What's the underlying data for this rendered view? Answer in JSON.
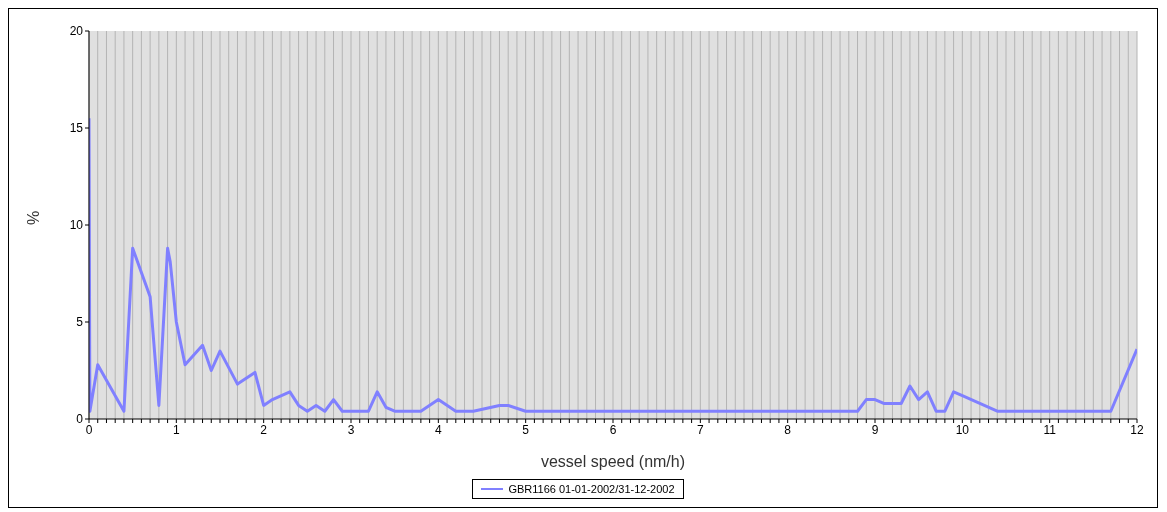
{
  "chart_data": {
    "type": "line",
    "xlabel": "vessel speed (nm/h)",
    "ylabel": "%",
    "legend": "bottom",
    "grid": "x",
    "marker": "none",
    "line_style": "solid",
    "xlim": [
      0,
      12
    ],
    "ylim": [
      0,
      20
    ],
    "yticks": [
      0,
      5,
      10,
      15,
      20
    ],
    "xticks": [
      0,
      {
        "value": 0.1,
        "label": null
      },
      {
        "value": 0.2,
        "label": null
      },
      {
        "value": 0.3,
        "label": null
      },
      {
        "value": 0.4,
        "label": null
      },
      {
        "value": 0.5,
        "label": null
      },
      {
        "value": 0.6,
        "label": null
      },
      {
        "value": 0.7,
        "label": null
      },
      {
        "value": 0.8,
        "label": null
      },
      {
        "value": 0.9,
        "label": null
      },
      1,
      {
        "value": 1.1,
        "label": null
      },
      {
        "value": 1.2,
        "label": null
      },
      {
        "value": 1.3,
        "label": null
      },
      {
        "value": 1.4,
        "label": null
      },
      {
        "value": 1.5,
        "label": null
      },
      {
        "value": 1.6,
        "label": null
      },
      {
        "value": 1.7,
        "label": null
      },
      {
        "value": 1.8,
        "label": null
      },
      {
        "value": 1.9,
        "label": null
      },
      2,
      {
        "value": 2.1,
        "label": null
      },
      {
        "value": 2.2,
        "label": null
      },
      {
        "value": 2.3,
        "label": null
      },
      {
        "value": 2.4,
        "label": null
      },
      {
        "value": 2.5,
        "label": null
      },
      {
        "value": 2.6,
        "label": null
      },
      {
        "value": 2.7,
        "label": null
      },
      {
        "value": 2.8,
        "label": null
      },
      {
        "value": 2.9,
        "label": null
      },
      3,
      {
        "value": 3.1,
        "label": null
      },
      {
        "value": 3.2,
        "label": null
      },
      {
        "value": 3.3,
        "label": null
      },
      {
        "value": 3.4,
        "label": null
      },
      {
        "value": 3.5,
        "label": null
      },
      {
        "value": 3.6,
        "label": null
      },
      {
        "value": 3.7,
        "label": null
      },
      {
        "value": 3.8,
        "label": null
      },
      {
        "value": 3.9,
        "label": null
      },
      4,
      {
        "value": 4.1,
        "label": null
      },
      {
        "value": 4.2,
        "label": null
      },
      {
        "value": 4.3,
        "label": null
      },
      {
        "value": 4.4,
        "label": null
      },
      {
        "value": 4.5,
        "label": null
      },
      {
        "value": 4.6,
        "label": null
      },
      {
        "value": 4.7,
        "label": null
      },
      {
        "value": 4.8,
        "label": null
      },
      {
        "value": 4.9,
        "label": null
      },
      5,
      {
        "value": 5.1,
        "label": null
      },
      {
        "value": 5.2,
        "label": null
      },
      {
        "value": 5.3,
        "label": null
      },
      {
        "value": 5.4,
        "label": null
      },
      {
        "value": 5.5,
        "label": null
      },
      {
        "value": 5.6,
        "label": null
      },
      {
        "value": 5.7,
        "label": null
      },
      {
        "value": 5.8,
        "label": null
      },
      {
        "value": 5.9,
        "label": null
      },
      6,
      {
        "value": 6.1,
        "label": null
      },
      {
        "value": 6.2,
        "label": null
      },
      {
        "value": 6.3,
        "label": null
      },
      {
        "value": 6.4,
        "label": null
      },
      {
        "value": 6.5,
        "label": null
      },
      {
        "value": 6.6,
        "label": null
      },
      {
        "value": 6.7,
        "label": null
      },
      {
        "value": 6.8,
        "label": null
      },
      {
        "value": 6.9,
        "label": null
      },
      7,
      {
        "value": 7.1,
        "label": null
      },
      {
        "value": 7.2,
        "label": null
      },
      {
        "value": 7.3,
        "label": null
      },
      {
        "value": 7.4,
        "label": null
      },
      {
        "value": 7.5,
        "label": null
      },
      {
        "value": 7.6,
        "label": null
      },
      {
        "value": 7.7,
        "label": null
      },
      {
        "value": 7.8,
        "label": null
      },
      {
        "value": 7.9,
        "label": null
      },
      8,
      {
        "value": 8.1,
        "label": null
      },
      {
        "value": 8.2,
        "label": null
      },
      {
        "value": 8.3,
        "label": null
      },
      {
        "value": 8.4,
        "label": null
      },
      {
        "value": 8.5,
        "label": null
      },
      {
        "value": 8.6,
        "label": null
      },
      {
        "value": 8.7,
        "label": null
      },
      {
        "value": 8.8,
        "label": null
      },
      {
        "value": 8.9,
        "label": null
      },
      9,
      {
        "value": 9.1,
        "label": null
      },
      {
        "value": 9.2,
        "label": null
      },
      {
        "value": 9.3,
        "label": null
      },
      {
        "value": 9.4,
        "label": null
      },
      {
        "value": 9.5,
        "label": null
      },
      {
        "value": 9.6,
        "label": null
      },
      {
        "value": 9.7,
        "label": null
      },
      {
        "value": 9.8,
        "label": null
      },
      {
        "value": 9.9,
        "label": null
      },
      10,
      {
        "value": 10.1,
        "label": null
      },
      {
        "value": 10.2,
        "label": null
      },
      {
        "value": 10.3,
        "label": null
      },
      {
        "value": 10.4,
        "label": null
      },
      {
        "value": 10.5,
        "label": null
      },
      {
        "value": 10.6,
        "label": null
      },
      {
        "value": 10.7,
        "label": null
      },
      {
        "value": 10.8,
        "label": null
      },
      {
        "value": 10.9,
        "label": null
      },
      11,
      {
        "value": 11.1,
        "label": null
      },
      {
        "value": 11.2,
        "label": null
      },
      {
        "value": 11.3,
        "label": null
      },
      {
        "value": 11.4,
        "label": null
      },
      {
        "value": 11.5,
        "label": null
      },
      {
        "value": 11.6,
        "label": null
      },
      {
        "value": 11.7,
        "label": null
      },
      {
        "value": 11.8,
        "label": null
      },
      {
        "value": 11.9,
        "label": null
      },
      12
    ],
    "series": [
      {
        "name": "GBR1166 01-01-2002/31-12-2002",
        "color": "#8080ff",
        "x": [
          0,
          0.01,
          0.1,
          0.4,
          0.5,
          0.7,
          0.8,
          0.9,
          0.93,
          1.0,
          1.1,
          1.3,
          1.4,
          1.5,
          1.7,
          1.9,
          2.0,
          2.1,
          2.3,
          2.4,
          2.5,
          2.6,
          2.7,
          2.8,
          2.9,
          3.2,
          3.3,
          3.4,
          3.5,
          3.8,
          4.0,
          4.2,
          4.4,
          4.7,
          4.8,
          5.0,
          8.8,
          8.9,
          9.0,
          9.1,
          9.3,
          9.4,
          9.5,
          9.6,
          9.7,
          9.8,
          9.9,
          10.0,
          10.4,
          11.7,
          12
        ],
        "values": [
          15.5,
          0.4,
          2.8,
          0.4,
          8.8,
          6.3,
          0.7,
          8.8,
          8.1,
          5.0,
          2.8,
          3.8,
          2.5,
          3.5,
          1.8,
          2.4,
          0.7,
          1.0,
          1.4,
          0.7,
          0.4,
          0.7,
          0.4,
          1.0,
          0.4,
          0.4,
          1.4,
          0.6,
          0.4,
          0.4,
          1.0,
          0.4,
          0.4,
          0.7,
          0.7,
          0.4,
          0.4,
          1.0,
          1.0,
          0.8,
          0.8,
          1.7,
          1.0,
          1.4,
          0.4,
          0.4,
          1.4,
          1.2,
          0.4,
          0.4,
          3.6
        ]
      }
    ]
  }
}
